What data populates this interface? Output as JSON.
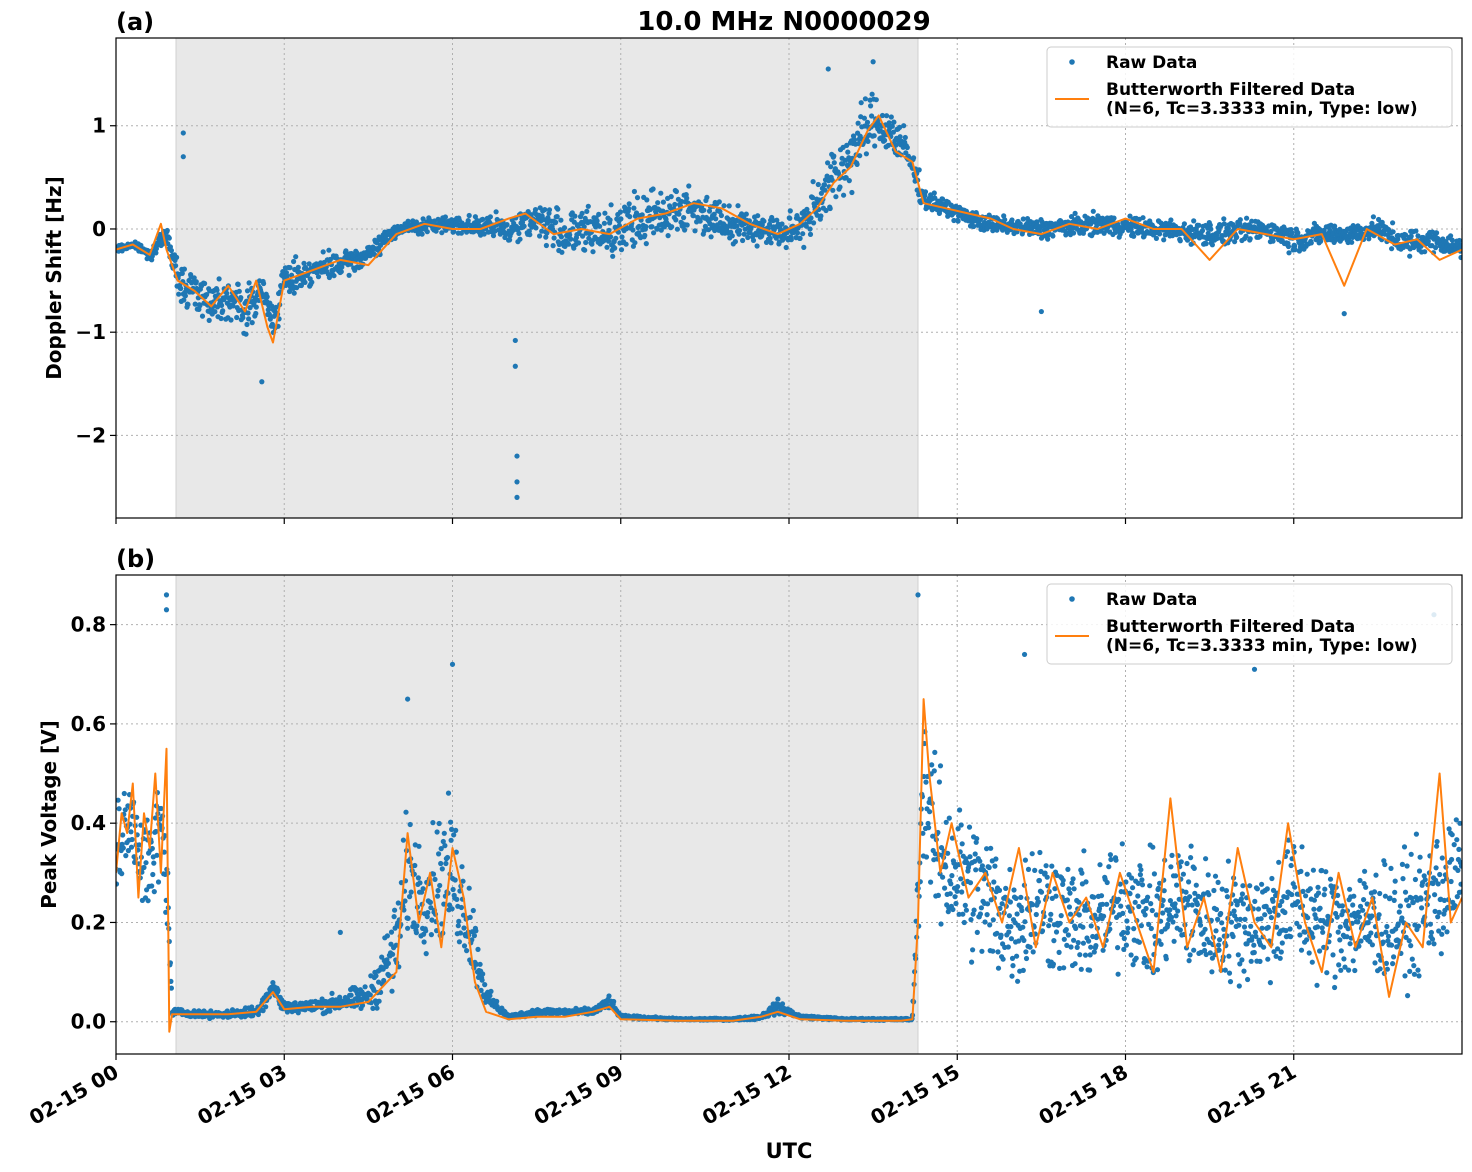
{
  "figure": {
    "title": "10.0 MHz N0000029",
    "xlabel": "UTC"
  },
  "colors": {
    "raw": "#1f77b4",
    "filtered": "#ff7f0e",
    "shade": "#e8e8e8",
    "grid": "#b0b0b0"
  },
  "x_ticks": [
    {
      "hour": 0,
      "label": "02-15 00"
    },
    {
      "hour": 3,
      "label": "02-15 03"
    },
    {
      "hour": 6,
      "label": "02-15 06"
    },
    {
      "hour": 9,
      "label": "02-15 09"
    },
    {
      "hour": 12,
      "label": "02-15 12"
    },
    {
      "hour": 15,
      "label": "02-15 15"
    },
    {
      "hour": 18,
      "label": "02-15 18"
    },
    {
      "hour": 21,
      "label": "02-15 21"
    }
  ],
  "chart_data": [
    {
      "type": "scatter",
      "panel_label": "(a)",
      "ylabel": "Doppler Shift [Hz]",
      "xlim": [
        "2025-02-15 00:00",
        "2025-02-16 00:00"
      ],
      "xlim_hours": [
        0,
        24
      ],
      "ylim": [
        -2.8,
        1.85
      ],
      "yticks": [
        {
          "v": 1,
          "label": "1"
        },
        {
          "v": 0,
          "label": "0"
        },
        {
          "v": -1,
          "label": "−1"
        },
        {
          "v": -2,
          "label": "−2"
        }
      ],
      "grid": true,
      "legend_placement": "top-right",
      "shaded_interval_hours": [
        1.07,
        14.3
      ],
      "series": [
        {
          "name": "Raw Data",
          "kind": "scatter",
          "x": [
            0.0,
            0.3,
            0.6,
            0.9,
            1.1,
            1.4,
            1.7,
            2.0,
            2.3,
            2.6,
            2.8,
            3.0,
            3.5,
            4.0,
            4.5,
            5.0,
            6.0,
            7.0,
            7.5,
            8.0,
            9.0,
            9.5,
            10.0,
            10.5,
            11.0,
            11.5,
            12.0,
            12.3,
            12.6,
            12.9,
            13.2,
            13.5,
            13.8,
            14.1,
            14.4,
            14.8,
            15.5,
            16.5,
            17.5,
            18.5,
            19.5,
            20.5,
            21.0,
            21.5,
            22.0,
            22.5,
            23.0,
            23.5,
            24.0
          ],
          "y": [
            -0.2,
            -0.15,
            -0.25,
            -0.05,
            -0.5,
            -0.6,
            -0.7,
            -0.65,
            -0.8,
            -0.6,
            -0.9,
            -0.5,
            -0.4,
            -0.35,
            -0.25,
            0.0,
            0.05,
            0.0,
            0.1,
            -0.05,
            0.0,
            0.1,
            0.2,
            0.15,
            0.05,
            0.0,
            -0.05,
            0.1,
            0.35,
            0.55,
            0.8,
            1.05,
            0.95,
            0.75,
            0.3,
            0.2,
            0.05,
            0.0,
            0.05,
            0.0,
            -0.05,
            0.0,
            -0.1,
            -0.05,
            -0.05,
            0.0,
            -0.15,
            -0.1,
            -0.2
          ],
          "spread": [
            0.05,
            0.05,
            0.08,
            0.1,
            0.3,
            0.3,
            0.3,
            0.3,
            0.35,
            0.25,
            0.3,
            0.25,
            0.2,
            0.18,
            0.15,
            0.1,
            0.12,
            0.2,
            0.25,
            0.35,
            0.4,
            0.4,
            0.35,
            0.3,
            0.25,
            0.2,
            0.25,
            0.35,
            0.45,
            0.5,
            0.5,
            0.4,
            0.35,
            0.3,
            0.15,
            0.12,
            0.12,
            0.15,
            0.15,
            0.15,
            0.18,
            0.15,
            0.2,
            0.15,
            0.15,
            0.15,
            0.2,
            0.15,
            0.15
          ],
          "outliers": [
            {
              "x": 7.15,
              "y": -2.6
            },
            {
              "x": 7.15,
              "y": -2.45
            },
            {
              "x": 7.15,
              "y": -2.2
            },
            {
              "x": 7.12,
              "y": -1.33
            },
            {
              "x": 7.12,
              "y": -1.08
            },
            {
              "x": 1.2,
              "y": 0.93
            },
            {
              "x": 1.2,
              "y": 0.7
            },
            {
              "x": 16.5,
              "y": -0.8
            },
            {
              "x": 21.9,
              "y": -0.82
            },
            {
              "x": 13.5,
              "y": 1.62
            },
            {
              "x": 12.7,
              "y": 1.55
            },
            {
              "x": 2.6,
              "y": -1.48
            }
          ]
        },
        {
          "name": "Butterworth Filtered Data\n(N=6, Tc=3.3333 min, Type: low)",
          "kind": "line",
          "x": [
            0.0,
            0.3,
            0.6,
            0.7,
            0.8,
            0.9,
            1.1,
            1.4,
            1.7,
            2.0,
            2.3,
            2.5,
            2.7,
            2.8,
            3.0,
            3.5,
            4.0,
            4.5,
            5.0,
            5.5,
            6.0,
            6.5,
            7.0,
            7.3,
            7.8,
            8.3,
            8.8,
            9.3,
            9.8,
            10.3,
            10.8,
            11.3,
            11.8,
            12.2,
            12.5,
            12.8,
            13.1,
            13.4,
            13.6,
            13.9,
            14.2,
            14.4,
            14.8,
            15.2,
            15.6,
            16.0,
            16.5,
            17.0,
            17.5,
            18.0,
            18.5,
            19.0,
            19.5,
            20.0,
            20.5,
            21.0,
            21.5,
            21.9,
            22.3,
            22.8,
            23.2,
            23.6,
            24.0
          ],
          "y": [
            -0.2,
            -0.15,
            -0.25,
            -0.1,
            0.05,
            -0.2,
            -0.5,
            -0.6,
            -0.75,
            -0.55,
            -0.8,
            -0.5,
            -0.95,
            -1.1,
            -0.5,
            -0.4,
            -0.3,
            -0.35,
            -0.05,
            0.05,
            0.0,
            0.0,
            0.1,
            0.15,
            -0.05,
            0.0,
            -0.05,
            0.1,
            0.15,
            0.25,
            0.2,
            0.05,
            -0.05,
            0.05,
            0.2,
            0.45,
            0.6,
            0.95,
            1.1,
            0.75,
            0.65,
            0.25,
            0.2,
            0.15,
            0.1,
            0.0,
            -0.05,
            0.05,
            0.0,
            0.1,
            0.0,
            0.0,
            -0.3,
            0.0,
            -0.05,
            -0.1,
            -0.05,
            -0.55,
            0.0,
            -0.15,
            -0.1,
            -0.3,
            -0.2
          ]
        }
      ]
    },
    {
      "type": "scatter",
      "panel_label": "(b)",
      "ylabel": "Peak Voltage [V]",
      "xlim": [
        "2025-02-15 00:00",
        "2025-02-16 00:00"
      ],
      "xlim_hours": [
        0,
        24
      ],
      "ylim": [
        -0.065,
        0.9
      ],
      "yticks": [
        {
          "v": 0.8,
          "label": "0.8"
        },
        {
          "v": 0.6,
          "label": "0.6"
        },
        {
          "v": 0.4,
          "label": "0.4"
        },
        {
          "v": 0.2,
          "label": "0.2"
        },
        {
          "v": 0.0,
          "label": "0.0"
        }
      ],
      "grid": true,
      "legend_placement": "top-right",
      "shaded_interval_hours": [
        1.07,
        14.3
      ],
      "series": [
        {
          "name": "Raw Data",
          "kind": "scatter",
          "x": [
            0.0,
            0.3,
            0.6,
            0.8,
            0.9,
            1.0,
            1.5,
            2.0,
            2.5,
            2.8,
            3.0,
            3.5,
            4.0,
            4.5,
            5.0,
            5.2,
            5.5,
            5.8,
            6.0,
            6.3,
            6.6,
            7.0,
            7.5,
            8.0,
            8.5,
            8.8,
            9.0,
            10.0,
            11.0,
            11.5,
            11.8,
            12.2,
            13.0,
            14.0,
            14.2,
            14.4,
            14.6,
            15.0,
            15.5,
            16.0,
            16.5,
            17.0,
            17.5,
            18.0,
            18.5,
            19.0,
            19.5,
            20.0,
            20.5,
            21.0,
            21.5,
            22.0,
            22.5,
            23.0,
            23.5,
            24.0
          ],
          "y": [
            0.35,
            0.4,
            0.3,
            0.4,
            0.3,
            0.02,
            0.015,
            0.015,
            0.02,
            0.07,
            0.03,
            0.03,
            0.04,
            0.05,
            0.15,
            0.3,
            0.25,
            0.3,
            0.3,
            0.2,
            0.05,
            0.01,
            0.02,
            0.02,
            0.02,
            0.04,
            0.01,
            0.005,
            0.005,
            0.01,
            0.03,
            0.01,
            0.005,
            0.005,
            0.005,
            0.5,
            0.35,
            0.3,
            0.25,
            0.2,
            0.25,
            0.2,
            0.2,
            0.25,
            0.2,
            0.25,
            0.2,
            0.2,
            0.2,
            0.25,
            0.2,
            0.2,
            0.2,
            0.2,
            0.25,
            0.3
          ],
          "spread": [
            0.15,
            0.15,
            0.15,
            0.15,
            0.15,
            0.01,
            0.01,
            0.01,
            0.02,
            0.03,
            0.02,
            0.02,
            0.03,
            0.04,
            0.15,
            0.2,
            0.15,
            0.2,
            0.2,
            0.15,
            0.03,
            0.005,
            0.01,
            0.01,
            0.01,
            0.02,
            0.005,
            0.003,
            0.003,
            0.008,
            0.02,
            0.005,
            0.003,
            0.003,
            0.003,
            0.25,
            0.25,
            0.22,
            0.22,
            0.2,
            0.2,
            0.18,
            0.18,
            0.2,
            0.18,
            0.2,
            0.18,
            0.18,
            0.18,
            0.2,
            0.18,
            0.18,
            0.18,
            0.18,
            0.2,
            0.2
          ],
          "outliers": [
            {
              "x": 0.9,
              "y": 0.86
            },
            {
              "x": 0.9,
              "y": 0.83
            },
            {
              "x": 14.3,
              "y": 0.86
            },
            {
              "x": 6.0,
              "y": 0.72
            },
            {
              "x": 5.2,
              "y": 0.65
            },
            {
              "x": 4.0,
              "y": 0.18
            },
            {
              "x": 23.5,
              "y": 0.82
            },
            {
              "x": 16.2,
              "y": 0.74
            },
            {
              "x": 20.3,
              "y": 0.71
            }
          ]
        },
        {
          "name": "Butterworth Filtered Data\n(N=6, Tc=3.3333 min, Type: low)",
          "kind": "line",
          "x": [
            0.0,
            0.1,
            0.2,
            0.3,
            0.4,
            0.5,
            0.6,
            0.7,
            0.8,
            0.9,
            0.95,
            1.0,
            1.5,
            2.0,
            2.5,
            2.8,
            3.0,
            3.5,
            4.0,
            4.5,
            5.0,
            5.2,
            5.4,
            5.6,
            5.8,
            6.0,
            6.2,
            6.4,
            6.6,
            7.0,
            7.5,
            8.0,
            8.5,
            8.8,
            9.0,
            10.0,
            11.0,
            11.5,
            11.8,
            12.2,
            13.0,
            14.0,
            14.2,
            14.3,
            14.4,
            14.5,
            14.7,
            14.9,
            15.2,
            15.5,
            15.8,
            16.1,
            16.4,
            16.7,
            17.0,
            17.3,
            17.6,
            17.9,
            18.2,
            18.5,
            18.8,
            19.1,
            19.4,
            19.7,
            20.0,
            20.3,
            20.6,
            20.9,
            21.2,
            21.5,
            21.8,
            22.1,
            22.4,
            22.7,
            23.0,
            23.3,
            23.6,
            23.8,
            24.0
          ],
          "y": [
            0.3,
            0.42,
            0.38,
            0.48,
            0.25,
            0.42,
            0.35,
            0.5,
            0.3,
            0.55,
            -0.02,
            0.015,
            0.015,
            0.015,
            0.02,
            0.06,
            0.025,
            0.03,
            0.03,
            0.04,
            0.1,
            0.38,
            0.2,
            0.3,
            0.15,
            0.35,
            0.25,
            0.08,
            0.02,
            0.005,
            0.01,
            0.01,
            0.02,
            0.03,
            0.005,
            0.002,
            0.002,
            0.01,
            0.02,
            0.005,
            0.002,
            0.002,
            0.005,
            0.2,
            0.65,
            0.5,
            0.3,
            0.4,
            0.25,
            0.3,
            0.2,
            0.35,
            0.15,
            0.3,
            0.2,
            0.25,
            0.15,
            0.3,
            0.2,
            0.1,
            0.45,
            0.15,
            0.25,
            0.1,
            0.35,
            0.2,
            0.15,
            0.4,
            0.2,
            0.1,
            0.3,
            0.15,
            0.25,
            0.05,
            0.2,
            0.15,
            0.5,
            0.2,
            0.25
          ]
        }
      ]
    }
  ]
}
